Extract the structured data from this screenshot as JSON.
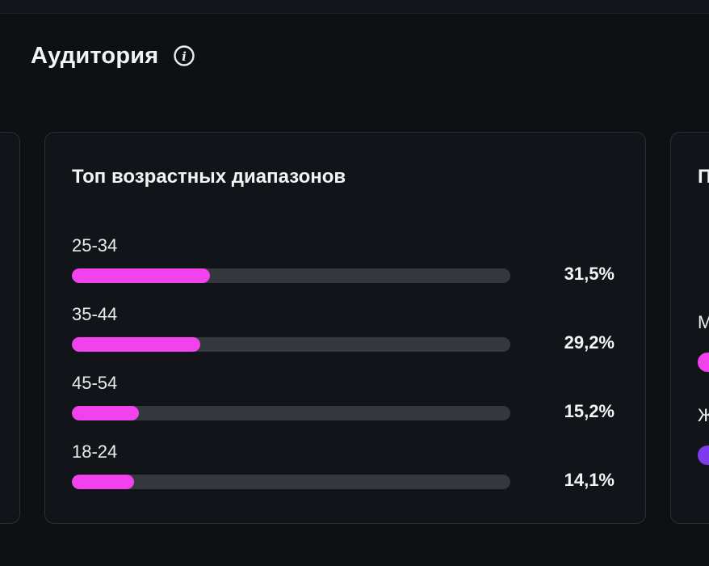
{
  "header": {
    "title": "Аудитория",
    "info_icon": "info-circle"
  },
  "age_card": {
    "title": "Топ возрастных диапазонов",
    "rows": [
      {
        "label": "25-34",
        "value": "31,5%",
        "pct": 31.5
      },
      {
        "label": "35-44",
        "value": "29,2%",
        "pct": 29.2
      },
      {
        "label": "45-54",
        "value": "15,2%",
        "pct": 15.2
      },
      {
        "label": "18-24",
        "value": "14,1%",
        "pct": 14.1
      }
    ]
  },
  "gender_card": {
    "title": "П",
    "rows": [
      {
        "label": "М",
        "color": "#f142ed"
      },
      {
        "label": "Ж",
        "color": "#7c3bec"
      }
    ]
  },
  "colors": {
    "page_bg": "#0e1114",
    "card_bg": "#111419",
    "card_border": "#2b3036",
    "bar_track": "#34383d",
    "bar_pink": "#f142ed",
    "bar_purple": "#7c3bec",
    "text_primary": "#f2f3f5"
  },
  "chart_data": {
    "type": "bar",
    "orientation": "horizontal",
    "title": "Топ возрастных диапазонов",
    "categories": [
      "25-34",
      "35-44",
      "45-54",
      "18-24"
    ],
    "values": [
      31.5,
      29.2,
      15.2,
      14.1
    ],
    "value_labels": [
      "31,5%",
      "29,2%",
      "15,2%",
      "14,1%"
    ],
    "unit": "%",
    "xlim": [
      0,
      100
    ],
    "grid": false,
    "legend": false
  }
}
